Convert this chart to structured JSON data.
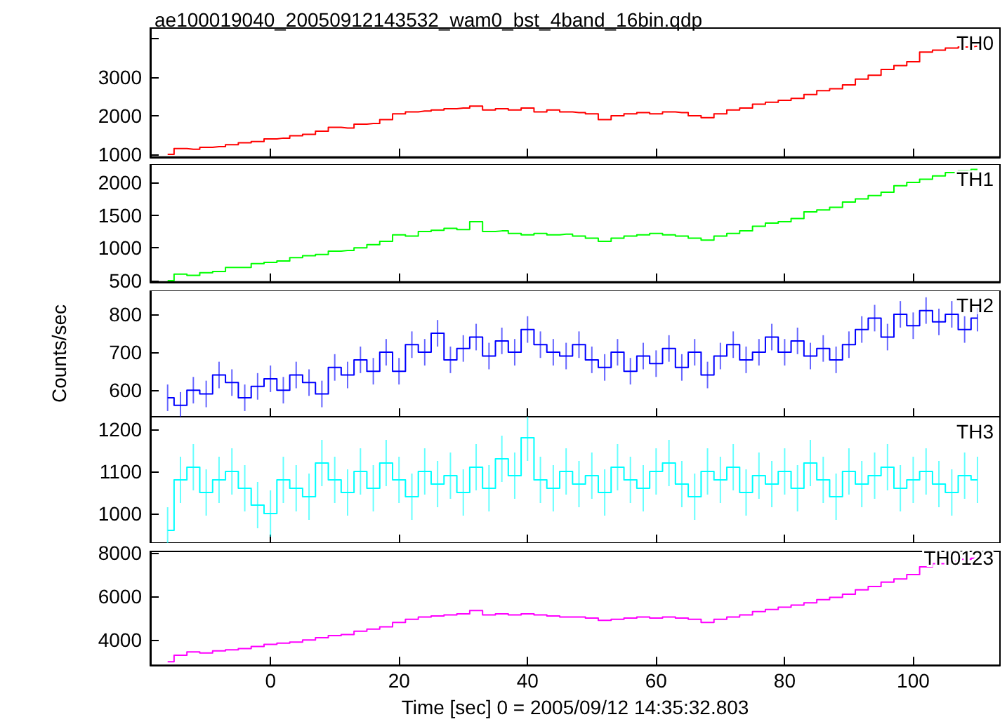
{
  "chart_data": [
    {
      "type": "step",
      "title": "ae100019040_20050912143532_wam0_bst_4band_16bin.qdp",
      "annotations": [
        "TH0"
      ],
      "tick_labels": "y",
      "xlim": [
        -18.7,
        113.5
      ],
      "xticks": [
        0,
        20,
        40,
        60,
        80,
        100
      ],
      "ylim": [
        930,
        4270
      ],
      "yticks": [
        1000,
        2000,
        3000,
        {
          "value": 4000,
          "label": null
        }
      ],
      "x": [
        -16,
        -14,
        -12,
        -10,
        -8,
        -6,
        -4,
        -2,
        0,
        2,
        4,
        6,
        8,
        10,
        12,
        14,
        16,
        18,
        20,
        22,
        24,
        26,
        28,
        30,
        32,
        34,
        36,
        38,
        40,
        42,
        44,
        46,
        48,
        50,
        52,
        54,
        56,
        58,
        60,
        62,
        64,
        66,
        68,
        70,
        72,
        74,
        76,
        78,
        80,
        82,
        84,
        86,
        88,
        90,
        92,
        94,
        96,
        98,
        100,
        102,
        104,
        106,
        108,
        110
      ],
      "series": [
        {
          "color": "#ff0000",
          "values": [
            1000,
            1150,
            1130,
            1180,
            1200,
            1250,
            1300,
            1330,
            1400,
            1420,
            1480,
            1520,
            1600,
            1700,
            1680,
            1780,
            1800,
            1900,
            2050,
            2100,
            2120,
            2150,
            2180,
            2200,
            2250,
            2150,
            2180,
            2150,
            2200,
            2100,
            2150,
            2100,
            2080,
            2050,
            1900,
            2000,
            2050,
            2080,
            2050,
            2100,
            2080,
            2000,
            1950,
            2050,
            2150,
            2200,
            2300,
            2350,
            2400,
            2450,
            2550,
            2650,
            2700,
            2800,
            2950,
            3050,
            3200,
            3300,
            3400,
            3650,
            3700,
            3750,
            3780,
            3800
          ]
        }
      ]
    },
    {
      "type": "step",
      "annotations": [
        "TH1"
      ],
      "tick_labels": "y",
      "xlim": [
        -18.7,
        113.5
      ],
      "xticks": [
        0,
        20,
        40,
        60,
        80,
        100
      ],
      "ylim": [
        480,
        2280
      ],
      "yticks": [
        500,
        1000,
        1500,
        2000
      ],
      "x": [
        -16,
        -14,
        -12,
        -10,
        -8,
        -6,
        -4,
        -2,
        0,
        2,
        4,
        6,
        8,
        10,
        12,
        14,
        16,
        18,
        20,
        22,
        24,
        26,
        28,
        30,
        32,
        34,
        36,
        38,
        40,
        42,
        44,
        46,
        48,
        50,
        52,
        54,
        56,
        58,
        60,
        62,
        64,
        66,
        68,
        70,
        72,
        74,
        76,
        78,
        80,
        82,
        84,
        86,
        88,
        90,
        92,
        94,
        96,
        98,
        100,
        102,
        104,
        106,
        108,
        110
      ],
      "series": [
        {
          "color": "#00ff00",
          "values": [
            500,
            600,
            580,
            620,
            640,
            700,
            700,
            760,
            780,
            800,
            850,
            880,
            900,
            950,
            960,
            1000,
            1050,
            1100,
            1200,
            1180,
            1250,
            1270,
            1300,
            1280,
            1400,
            1250,
            1260,
            1220,
            1200,
            1220,
            1200,
            1210,
            1180,
            1150,
            1100,
            1150,
            1180,
            1200,
            1220,
            1200,
            1180,
            1150,
            1120,
            1180,
            1220,
            1260,
            1330,
            1380,
            1400,
            1450,
            1550,
            1580,
            1620,
            1700,
            1750,
            1800,
            1850,
            1950,
            2000,
            2050,
            2100,
            2150,
            2180,
            2200
          ]
        }
      ]
    },
    {
      "type": "step",
      "annotations": [
        "TH2"
      ],
      "ylabel": "Counts/sec",
      "tick_labels": "y",
      "xlim": [
        -18.7,
        113.5
      ],
      "xticks": [
        0,
        20,
        40,
        60,
        80,
        100
      ],
      "ylim": [
        530,
        863
      ],
      "yticks": [
        600,
        700,
        800
      ],
      "x": [
        -16,
        -14,
        -12,
        -10,
        -8,
        -6,
        -4,
        -2,
        0,
        2,
        4,
        6,
        8,
        10,
        12,
        14,
        16,
        18,
        20,
        22,
        24,
        26,
        28,
        30,
        32,
        34,
        36,
        38,
        40,
        42,
        44,
        46,
        48,
        50,
        52,
        54,
        56,
        58,
        60,
        62,
        64,
        66,
        68,
        70,
        72,
        74,
        76,
        78,
        80,
        82,
        84,
        86,
        88,
        90,
        92,
        94,
        96,
        98,
        100,
        102,
        104,
        106,
        108,
        110
      ],
      "series": [
        {
          "color": "#0000ff",
          "values": [
            580,
            560,
            600,
            590,
            640,
            620,
            580,
            610,
            630,
            600,
            640,
            620,
            590,
            660,
            640,
            680,
            650,
            700,
            650,
            720,
            700,
            750,
            680,
            710,
            740,
            690,
            730,
            700,
            760,
            720,
            700,
            690,
            720,
            680,
            660,
            700,
            650,
            690,
            670,
            710,
            660,
            700,
            640,
            690,
            720,
            680,
            700,
            740,
            700,
            730,
            690,
            710,
            680,
            720,
            760,
            790,
            740,
            800,
            770,
            810,
            780,
            800,
            760,
            790
          ],
          "errors": [
            35,
            35,
            35,
            35,
            35,
            35,
            35,
            35,
            35,
            35,
            35,
            35,
            35,
            35,
            35,
            35,
            35,
            35,
            35,
            35,
            35,
            35,
            35,
            35,
            35,
            35,
            35,
            35,
            35,
            35,
            35,
            35,
            35,
            35,
            35,
            35,
            35,
            35,
            35,
            35,
            35,
            35,
            35,
            35,
            35,
            35,
            35,
            35,
            35,
            35,
            35,
            35,
            35,
            35,
            35,
            35,
            35,
            35,
            35,
            35,
            35,
            35,
            35,
            35
          ]
        }
      ]
    },
    {
      "type": "step",
      "annotations": [
        "TH3"
      ],
      "tick_labels": "y",
      "xlim": [
        -18.7,
        113.5
      ],
      "xticks": [
        0,
        20,
        40,
        60,
        80,
        100
      ],
      "ylim": [
        930,
        1230
      ],
      "yticks": [
        1000,
        1100,
        1200
      ],
      "x": [
        -16,
        -14,
        -12,
        -10,
        -8,
        -6,
        -4,
        -2,
        0,
        2,
        4,
        6,
        8,
        10,
        12,
        14,
        16,
        18,
        20,
        22,
        24,
        26,
        28,
        30,
        32,
        34,
        36,
        38,
        40,
        42,
        44,
        46,
        48,
        50,
        52,
        54,
        56,
        58,
        60,
        62,
        64,
        66,
        68,
        70,
        72,
        74,
        76,
        78,
        80,
        82,
        84,
        86,
        88,
        90,
        92,
        94,
        96,
        98,
        100,
        102,
        104,
        106,
        108,
        110
      ],
      "series": [
        {
          "color": "#00ffff",
          "values": [
            960,
            1080,
            1110,
            1050,
            1080,
            1100,
            1060,
            1020,
            1000,
            1080,
            1060,
            1040,
            1120,
            1080,
            1050,
            1100,
            1060,
            1120,
            1080,
            1040,
            1100,
            1070,
            1090,
            1050,
            1110,
            1060,
            1130,
            1090,
            1180,
            1080,
            1060,
            1100,
            1070,
            1090,
            1050,
            1110,
            1080,
            1060,
            1100,
            1120,
            1070,
            1040,
            1100,
            1080,
            1110,
            1050,
            1090,
            1070,
            1100,
            1060,
            1120,
            1080,
            1040,
            1100,
            1070,
            1090,
            1110,
            1060,
            1080,
            1100,
            1070,
            1050,
            1090,
            1080
          ],
          "errors": [
            55,
            55,
            55,
            55,
            55,
            55,
            55,
            55,
            55,
            55,
            55,
            55,
            55,
            55,
            55,
            55,
            55,
            55,
            55,
            55,
            55,
            55,
            55,
            55,
            55,
            55,
            55,
            55,
            55,
            55,
            55,
            55,
            55,
            55,
            55,
            55,
            55,
            55,
            55,
            55,
            55,
            55,
            55,
            55,
            55,
            55,
            55,
            55,
            55,
            55,
            55,
            55,
            55,
            55,
            55,
            55,
            55,
            55,
            55,
            55,
            55,
            55,
            55,
            55
          ]
        }
      ]
    },
    {
      "type": "step",
      "annotations": [
        "TH0123"
      ],
      "xlabel": "Time [sec] 0 = 2005/09/12 14:35:32.803",
      "xlim": [
        -18.7,
        113.5
      ],
      "xticks": [
        0,
        20,
        40,
        60,
        80,
        100
      ],
      "ylim": [
        2840,
        8060
      ],
      "yticks": [
        4000,
        6000,
        8000
      ],
      "x": [
        -16,
        -14,
        -12,
        -10,
        -8,
        -6,
        -4,
        -2,
        0,
        2,
        4,
        6,
        8,
        10,
        12,
        14,
        16,
        18,
        20,
        22,
        24,
        26,
        28,
        30,
        32,
        34,
        36,
        38,
        40,
        42,
        44,
        46,
        48,
        50,
        52,
        54,
        56,
        58,
        60,
        62,
        64,
        66,
        68,
        70,
        72,
        74,
        76,
        78,
        80,
        82,
        84,
        86,
        88,
        90,
        92,
        94,
        96,
        98,
        100,
        102,
        104,
        106,
        108,
        110
      ],
      "series": [
        {
          "color": "#ff00ff",
          "values": [
            3000,
            3300,
            3450,
            3400,
            3500,
            3550,
            3600,
            3700,
            3800,
            3850,
            3900,
            4000,
            4100,
            4200,
            4250,
            4400,
            4500,
            4600,
            4800,
            4950,
            5050,
            5100,
            5150,
            5200,
            5350,
            5150,
            5200,
            5150,
            5200,
            5150,
            5100,
            5050,
            5050,
            5000,
            4900,
            4950,
            5000,
            5050,
            5000,
            5050,
            5000,
            4950,
            4800,
            4950,
            5050,
            5150,
            5300,
            5400,
            5500,
            5600,
            5700,
            5850,
            5950,
            6100,
            6300,
            6450,
            6650,
            6800,
            7000,
            7350,
            7500,
            7600,
            7700,
            7750
          ]
        }
      ]
    }
  ]
}
